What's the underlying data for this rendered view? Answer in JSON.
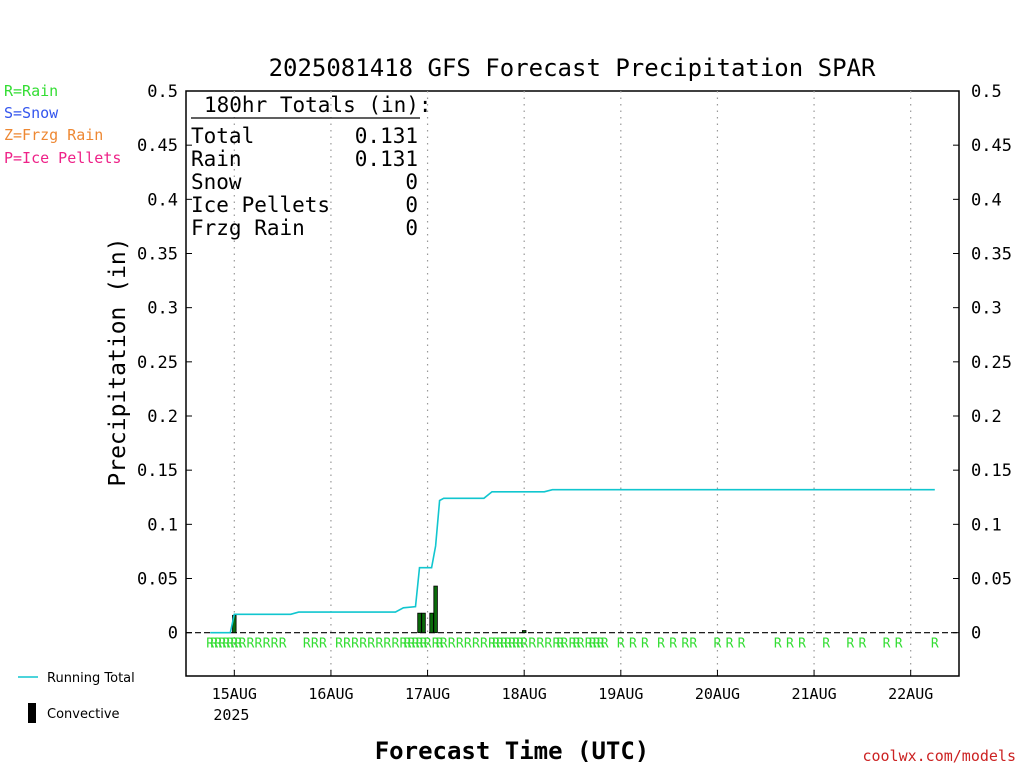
{
  "title": "2025081418 GFS Forecast Precipitation SPAR",
  "ylabel": "Precipitation (in)",
  "xlabel": "Forecast Time (UTC)",
  "credit": "coolwx.com/models",
  "colors": {
    "rain": "#33dd33",
    "snow": "#3355ee",
    "frzg": "#ee8833",
    "ice": "#ee2288",
    "running": "#11c6cf",
    "bar_fill": "#0a6a0a",
    "bar_edge": "#000000",
    "link": "#cc2222"
  },
  "type_legend": [
    {
      "text": "R=Rain",
      "color": "#33dd33"
    },
    {
      "text": "S=Snow",
      "color": "#3355ee"
    },
    {
      "text": "Z=Frzg Rain",
      "color": "#ee8833"
    },
    {
      "text": "P=Ice Pellets",
      "color": "#ee2288"
    }
  ],
  "series_legend": {
    "running": "Running Total",
    "convective": "Convective"
  },
  "totals": {
    "header": "180hr Totals (in):",
    "rows": [
      {
        "label": "Total",
        "value": "0.131"
      },
      {
        "label": "Rain",
        "value": "0.131"
      },
      {
        "label": "Snow",
        "value": "0"
      },
      {
        "label": "Ice Pellets",
        "value": "0"
      },
      {
        "label": "Frzg Rain",
        "value": "0"
      }
    ]
  },
  "chart_data": {
    "type": "bar",
    "x_unit": "hours after 2025-08-14 18Z",
    "xlim": [
      -6,
      186
    ],
    "ylim": [
      0,
      0.5
    ],
    "ylim_plot_bottom": -0.04,
    "yticks": [
      "0",
      "0.05",
      "0.1",
      "0.15",
      "0.2",
      "0.25",
      "0.3",
      "0.35",
      "0.4",
      "0.45",
      "0.5"
    ],
    "ytick_values": [
      0,
      0.05,
      0.1,
      0.15,
      0.2,
      0.25,
      0.3,
      0.35,
      0.4,
      0.45,
      0.5
    ],
    "xticks": [
      {
        "x": 6,
        "label": "15AUG",
        "sub": "2025"
      },
      {
        "x": 30,
        "label": "16AUG",
        "sub": ""
      },
      {
        "x": 54,
        "label": "17AUG",
        "sub": ""
      },
      {
        "x": 78,
        "label": "18AUG",
        "sub": ""
      },
      {
        "x": 102,
        "label": "19AUG",
        "sub": ""
      },
      {
        "x": 126,
        "label": "20AUG",
        "sub": ""
      },
      {
        "x": 150,
        "label": "21AUG",
        "sub": ""
      },
      {
        "x": 174,
        "label": "22AUG",
        "sub": ""
      }
    ],
    "grid": "vertical dotted at day boundaries",
    "series": [
      {
        "name": "Running Total",
        "kind": "line",
        "x": [
          0,
          5,
          6,
          20,
          22,
          46,
          48,
          51,
          52,
          53,
          55,
          56,
          57,
          58,
          64,
          68,
          70,
          83,
          85,
          180
        ],
        "y": [
          0,
          0,
          0.017,
          0.017,
          0.019,
          0.019,
          0.023,
          0.024,
          0.06,
          0.06,
          0.06,
          0.08,
          0.122,
          0.124,
          0.124,
          0.124,
          0.13,
          0.13,
          0.132,
          0.132
        ]
      },
      {
        "name": "Convective",
        "kind": "bar",
        "x": [
          6,
          52,
          53,
          55,
          56,
          78
        ],
        "y": [
          0.016,
          0.018,
          0.018,
          0.018,
          0.043,
          0.002
        ]
      }
    ],
    "precip_type_markers": {
      "symbol": "R",
      "x": [
        0,
        1,
        2,
        3,
        4,
        5,
        6,
        7,
        8,
        10,
        12,
        14,
        16,
        18,
        24,
        26,
        28,
        32,
        34,
        36,
        38,
        40,
        42,
        44,
        46,
        48,
        49,
        50,
        51,
        52,
        53,
        54,
        56,
        57,
        58,
        60,
        62,
        64,
        66,
        68,
        70,
        71,
        72,
        73,
        74,
        75,
        76,
        77,
        78,
        80,
        82,
        84,
        86,
        87,
        88,
        90,
        91,
        92,
        94,
        95,
        96,
        97,
        98,
        102,
        105,
        108,
        112,
        115,
        118,
        120,
        126,
        129,
        132,
        141,
        144,
        147,
        153,
        159,
        162,
        168,
        171,
        180
      ]
    }
  }
}
